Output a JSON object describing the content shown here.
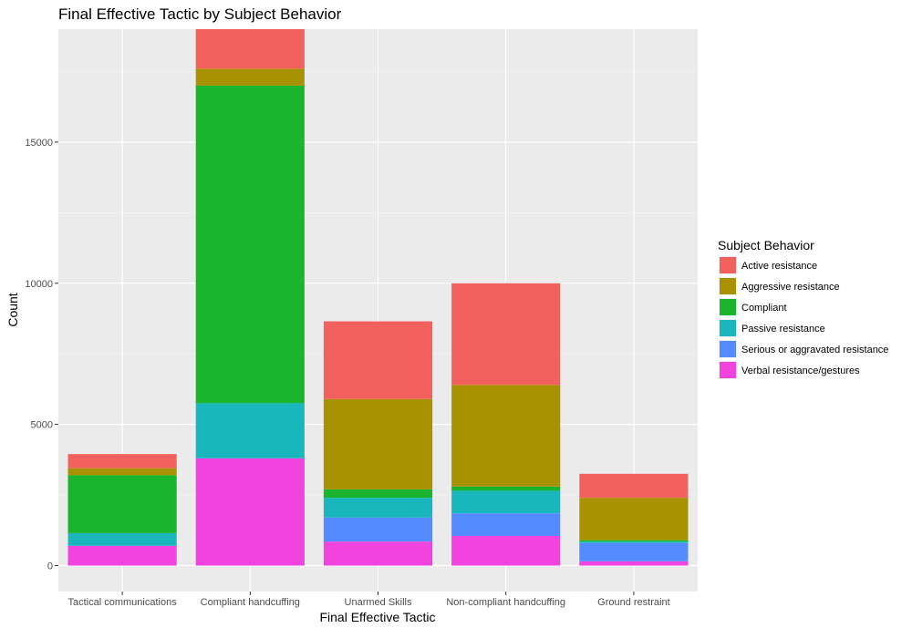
{
  "chart_data": {
    "type": "bar",
    "stacked": true,
    "title": "Final Effective Tactic by Subject Behavior",
    "xlabel": "Final Effective Tactic",
    "ylabel": "Count",
    "ylim": [
      0,
      19000
    ],
    "yticks": [
      0,
      5000,
      10000,
      15000
    ],
    "grid": true,
    "legend_title": "Subject Behavior",
    "legend_position": "right",
    "categories": [
      "Tactical communications",
      "Compliant handcuffing",
      "Unarmed Skills",
      "Non-compliant handcuffing",
      "Ground restraint"
    ],
    "series": [
      {
        "name": "Verbal resistance/gestures",
        "color": "#F143DE",
        "values": [
          700,
          3800,
          850,
          1050,
          150
        ]
      },
      {
        "name": "Serious or aggravated resistance",
        "color": "#538AFF",
        "values": [
          0,
          0,
          850,
          800,
          650
        ]
      },
      {
        "name": "Passive resistance",
        "color": "#1AB6BE",
        "values": [
          450,
          1950,
          700,
          800,
          50
        ]
      },
      {
        "name": "Compliant",
        "color": "#1BB42E",
        "values": [
          2050,
          11250,
          300,
          150,
          50
        ]
      },
      {
        "name": "Aggressive resistance",
        "color": "#A99201",
        "values": [
          250,
          600,
          3200,
          3600,
          1500
        ]
      },
      {
        "name": "Active resistance",
        "color": "#F3615E",
        "values": [
          500,
          1400,
          2750,
          3600,
          850
        ]
      }
    ],
    "legend_order": [
      "Active resistance",
      "Aggressive resistance",
      "Compliant",
      "Passive resistance",
      "Serious or aggravated resistance",
      "Verbal resistance/gestures"
    ]
  }
}
